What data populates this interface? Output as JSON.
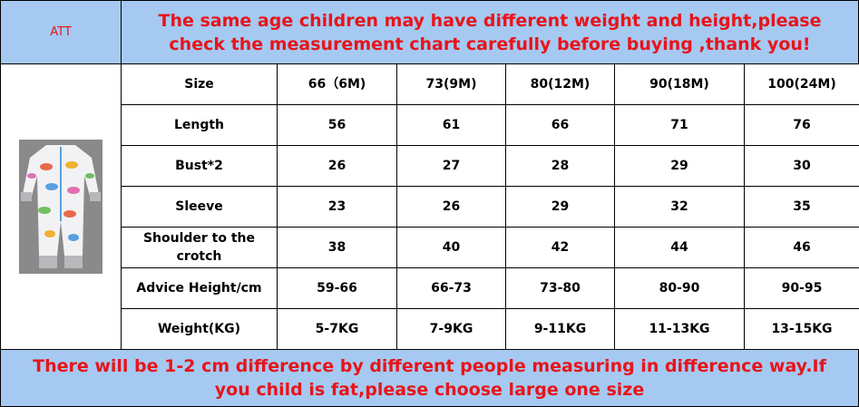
{
  "header": {
    "label": "ATT",
    "notice": "The same age children may have different weight and height,please check the measurement chart carefully before buying ,thank you!"
  },
  "table": {
    "rows": [
      [
        "Size",
        "66（6M)",
        "73(9M)",
        "80(12M)",
        "90(18M)",
        "100(24M)"
      ],
      [
        "Length",
        56,
        61,
        66,
        71,
        76
      ],
      [
        "Bust*2",
        26,
        27,
        28,
        29,
        30
      ],
      [
        "Sleeve",
        23,
        26,
        29,
        32,
        35
      ],
      [
        "Shoulder to the crotch",
        38,
        40,
        42,
        44,
        46
      ],
      [
        "Advice Height/cm",
        "59-66",
        "66-73",
        "73-80",
        "80-90",
        "90-95"
      ],
      [
        "Weight(KG)",
        "5-7KG",
        "7-9KG",
        "9-11KG",
        "11-13KG",
        "13-15KG"
      ]
    ]
  },
  "footer": {
    "notice": "There will be 1-2 cm difference by different people measuring in difference way.If you child is fat,please choose large one size"
  }
}
